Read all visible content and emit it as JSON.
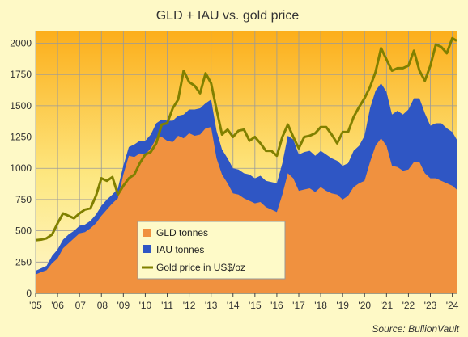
{
  "chart_data": {
    "type": "area",
    "title": "GLD + IAU vs. gold price",
    "source": "Source:  BullionVault",
    "xlabel": "",
    "ylabel": "",
    "ylim": [
      0,
      2100
    ],
    "xlim": [
      2005.0,
      2024.2
    ],
    "yticks": [
      0,
      250,
      500,
      750,
      1000,
      1250,
      1500,
      1750,
      2000
    ],
    "xticks": [
      "'05",
      "'06",
      "'07",
      "'08",
      "'09",
      "'10",
      "'11",
      "'12",
      "'13",
      "'14",
      "'15",
      "'16",
      "'17",
      "'18",
      "'19",
      "'20",
      "'21",
      "'22",
      "'23",
      "'24"
    ],
    "grid": true,
    "legend_position": "bottom-left-center",
    "legend": [
      {
        "label": "GLD tonnes",
        "color": "#f0913f"
      },
      {
        "label": "IAU tonnes",
        "color": "#2f56c4"
      },
      {
        "label": "Gold price in US$/oz",
        "color": "#808000"
      }
    ],
    "x": [
      2005.0,
      2005.25,
      2005.5,
      2005.75,
      2006.0,
      2006.25,
      2006.5,
      2006.75,
      2007.0,
      2007.25,
      2007.5,
      2007.75,
      2008.0,
      2008.25,
      2008.5,
      2008.75,
      2009.0,
      2009.25,
      2009.5,
      2009.75,
      2010.0,
      2010.25,
      2010.5,
      2010.75,
      2011.0,
      2011.25,
      2011.5,
      2011.75,
      2012.0,
      2012.25,
      2012.5,
      2012.75,
      2013.0,
      2013.25,
      2013.5,
      2013.75,
      2014.0,
      2014.25,
      2014.5,
      2014.75,
      2015.0,
      2015.25,
      2015.5,
      2015.75,
      2016.0,
      2016.25,
      2016.5,
      2016.75,
      2017.0,
      2017.25,
      2017.5,
      2017.75,
      2018.0,
      2018.25,
      2018.5,
      2018.75,
      2019.0,
      2019.25,
      2019.5,
      2019.75,
      2020.0,
      2020.25,
      2020.5,
      2020.75,
      2021.0,
      2021.25,
      2021.5,
      2021.75,
      2022.0,
      2022.25,
      2022.5,
      2022.75,
      2023.0,
      2023.25,
      2023.5,
      2023.75,
      2024.0,
      2024.2
    ],
    "series": [
      {
        "name": "GLD tonnes",
        "values": [
          150,
          170,
          185,
          240,
          280,
          360,
          400,
          440,
          480,
          490,
          520,
          560,
          620,
          670,
          720,
          760,
          950,
          1100,
          1090,
          1120,
          1110,
          1160,
          1240,
          1250,
          1220,
          1210,
          1260,
          1240,
          1280,
          1260,
          1270,
          1320,
          1330,
          1080,
          950,
          880,
          800,
          790,
          760,
          740,
          720,
          730,
          690,
          670,
          650,
          790,
          960,
          920,
          820,
          830,
          840,
          810,
          850,
          820,
          800,
          790,
          750,
          780,
          850,
          880,
          900,
          1050,
          1180,
          1240,
          1180,
          1020,
          1010,
          980,
          990,
          1050,
          1050,
          960,
          920,
          920,
          900,
          880,
          860,
          830
        ]
      },
      {
        "name": "IAU tonnes",
        "values": [
          180,
          200,
          220,
          300,
          350,
          430,
          470,
          500,
          540,
          550,
          580,
          630,
          700,
          750,
          790,
          840,
          1020,
          1170,
          1190,
          1220,
          1220,
          1270,
          1360,
          1390,
          1380,
          1380,
          1420,
          1430,
          1470,
          1470,
          1480,
          1520,
          1550,
          1300,
          1150,
          1080,
          1000,
          990,
          960,
          950,
          920,
          940,
          900,
          890,
          880,
          1040,
          1260,
          1230,
          1110,
          1130,
          1140,
          1100,
          1140,
          1110,
          1080,
          1060,
          1020,
          1040,
          1140,
          1180,
          1260,
          1480,
          1620,
          1680,
          1610,
          1430,
          1460,
          1430,
          1470,
          1560,
          1560,
          1440,
          1340,
          1360,
          1360,
          1320,
          1290,
          1230
        ]
      },
      {
        "name": "Gold price in US$/oz",
        "values": [
          425,
          430,
          440,
          470,
          560,
          640,
          620,
          600,
          640,
          670,
          680,
          780,
          920,
          900,
          930,
          790,
          860,
          920,
          950,
          1040,
          1110,
          1130,
          1200,
          1350,
          1360,
          1480,
          1550,
          1780,
          1690,
          1660,
          1600,
          1760,
          1680,
          1470,
          1270,
          1310,
          1250,
          1300,
          1310,
          1220,
          1250,
          1200,
          1140,
          1140,
          1100,
          1250,
          1350,
          1250,
          1160,
          1250,
          1260,
          1280,
          1330,
          1330,
          1270,
          1200,
          1290,
          1290,
          1410,
          1490,
          1560,
          1650,
          1770,
          1960,
          1870,
          1780,
          1800,
          1800,
          1820,
          1940,
          1780,
          1700,
          1820,
          1990,
          1970,
          1920,
          2040,
          2020
        ]
      }
    ]
  }
}
